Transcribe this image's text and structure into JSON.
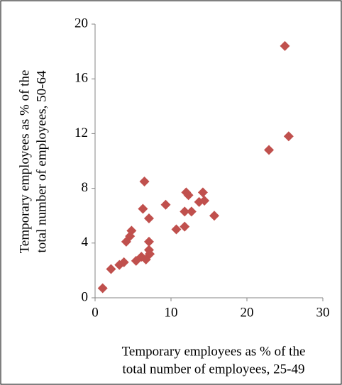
{
  "chart_data": {
    "type": "scatter",
    "xlabel": [
      "Temporary employees as % of the",
      "total number of employees, 25-49"
    ],
    "ylabel": [
      "Temporary employees as % of the",
      "total number of employees, 50-64"
    ],
    "color": "#c0504d",
    "xlim": [
      0,
      30
    ],
    "xticks": [
      0,
      10,
      20,
      30
    ],
    "ylim": [
      0,
      20
    ],
    "yticks": [
      0,
      4,
      8,
      12,
      16,
      20
    ],
    "x": [
      1.0,
      2.1,
      3.2,
      3.8,
      4.1,
      4.6,
      4.8,
      5.4,
      6.1,
      6.3,
      6.5,
      6.7,
      7.1,
      7.1,
      7.1,
      7.2,
      9.3,
      10.7,
      11.8,
      11.8,
      12.0,
      12.3,
      12.7,
      13.7,
      14.2,
      14.4,
      15.7,
      22.9,
      25.0,
      25.5
    ],
    "values": [
      0.7,
      2.1,
      2.4,
      2.6,
      4.1,
      4.5,
      4.9,
      2.7,
      3.0,
      6.5,
      8.5,
      2.8,
      3.5,
      4.1,
      5.8,
      3.2,
      6.8,
      5.0,
      5.2,
      6.3,
      7.7,
      7.5,
      6.3,
      7.0,
      7.7,
      7.1,
      6.0,
      10.8,
      18.4,
      11.8
    ]
  }
}
